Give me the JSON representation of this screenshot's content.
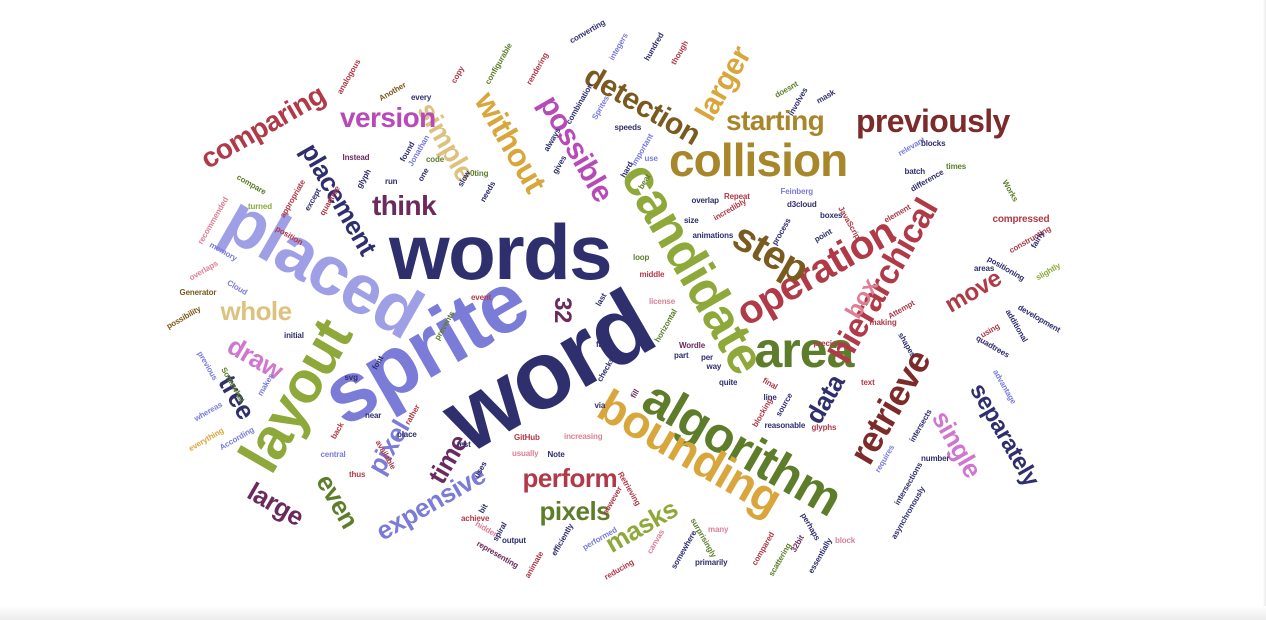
{
  "palette": {
    "navy": "#2f2f6e",
    "violet": "#7b7bd8",
    "periwinkle": "#9f9fe6",
    "olive": "#5e7d2a",
    "leaf": "#8ea83a",
    "gold": "#d9a63c",
    "ochre": "#a8862a",
    "sand": "#dcc27e",
    "maroon": "#7c2a2a",
    "crimson": "#b03a48",
    "pink": "#dd7f97",
    "magenta": "#b84ab8",
    "orchid": "#cf76cf",
    "plum": "#6b2a5e",
    "brown": "#7a5a1e"
  },
  "words": [
    {
      "text": "words",
      "color": "navy"
    },
    {
      "text": "word",
      "color": "navy"
    },
    {
      "text": "sprite",
      "color": "violet"
    },
    {
      "text": "placed",
      "color": "periwinkle"
    },
    {
      "text": "layout",
      "color": "leaf"
    },
    {
      "text": "candidate",
      "color": "leaf"
    },
    {
      "text": "algorithm",
      "color": "olive"
    },
    {
      "text": "bounding",
      "color": "gold"
    },
    {
      "text": "collision",
      "color": "ochre"
    },
    {
      "text": "area",
      "color": "olive"
    },
    {
      "text": "operation",
      "color": "crimson"
    },
    {
      "text": "retrieve",
      "color": "maroon"
    },
    {
      "text": "hierarchical",
      "color": "crimson"
    },
    {
      "text": "step",
      "color": "brown"
    },
    {
      "text": "previously",
      "color": "maroon"
    },
    {
      "text": "starting",
      "color": "ochre"
    },
    {
      "text": "detection",
      "color": "brown"
    },
    {
      "text": "larger",
      "color": "gold"
    },
    {
      "text": "possible",
      "color": "magenta"
    },
    {
      "text": "without",
      "color": "gold"
    },
    {
      "text": "simple",
      "color": "sand"
    },
    {
      "text": "version",
      "color": "magenta"
    },
    {
      "text": "comparing",
      "color": "crimson"
    },
    {
      "text": "placement",
      "color": "navy"
    },
    {
      "text": "think",
      "color": "plum"
    },
    {
      "text": "whole",
      "color": "sand"
    },
    {
      "text": "draw",
      "color": "orchid"
    },
    {
      "text": "tree",
      "color": "navy"
    },
    {
      "text": "large",
      "color": "plum"
    },
    {
      "text": "even",
      "color": "olive"
    },
    {
      "text": "pixel",
      "color": "violet"
    },
    {
      "text": "time",
      "color": "plum"
    },
    {
      "text": "expensive",
      "color": "violet"
    },
    {
      "text": "perform",
      "color": "crimson"
    },
    {
      "text": "pixels",
      "color": "olive"
    },
    {
      "text": "masks",
      "color": "leaf"
    },
    {
      "text": "data",
      "color": "navy"
    },
    {
      "text": "move",
      "color": "crimson"
    },
    {
      "text": "box",
      "color": "pink"
    },
    {
      "text": "single",
      "color": "orchid"
    },
    {
      "text": "separately",
      "color": "navy"
    },
    {
      "text": "32",
      "color": "plum"
    },
    {
      "text": "compressed",
      "color": "crimson"
    },
    {
      "text": "efficiently",
      "color": "navy"
    },
    {
      "text": "surprisingly",
      "color": "olive"
    },
    {
      "text": "representing",
      "color": "plum"
    },
    {
      "text": "primarily",
      "color": "navy"
    },
    {
      "text": "Generator",
      "color": "brown"
    },
    {
      "text": "Cloud",
      "color": "violet"
    },
    {
      "text": "Wordle",
      "color": "plum"
    },
    {
      "text": "animations",
      "color": "navy"
    },
    {
      "text": "horizontal",
      "color": "olive"
    },
    {
      "text": "Feinberg",
      "color": "violet"
    },
    {
      "text": "Jonathan",
      "color": "violet"
    },
    {
      "text": "d3cloud",
      "color": "navy"
    },
    {
      "text": "development",
      "color": "navy"
    },
    {
      "text": "positioning",
      "color": "navy"
    },
    {
      "text": "constructing",
      "color": "crimson"
    },
    {
      "text": "recommended",
      "color": "pink"
    },
    {
      "text": "Instead",
      "color": "plum"
    },
    {
      "text": "compare",
      "color": "olive"
    },
    {
      "text": "turned",
      "color": "leaf"
    },
    {
      "text": "memory",
      "color": "violet"
    },
    {
      "text": "overlaps",
      "color": "pink"
    },
    {
      "text": "possibility",
      "color": "brown"
    },
    {
      "text": "previous",
      "color": "violet"
    },
    {
      "text": "whereas",
      "color": "violet"
    },
    {
      "text": "everything",
      "color": "gold"
    },
    {
      "text": "According",
      "color": "violet"
    },
    {
      "text": "Somewhat",
      "color": "olive"
    },
    {
      "text": "central",
      "color": "violet"
    },
    {
      "text": "thus",
      "color": "crimson"
    },
    {
      "text": "usually",
      "color": "pink"
    },
    {
      "text": "Note",
      "color": "navy"
    },
    {
      "text": "uses",
      "color": "navy"
    },
    {
      "text": "output",
      "color": "navy"
    },
    {
      "text": "achieve",
      "color": "crimson"
    },
    {
      "text": "hidden",
      "color": "pink"
    },
    {
      "text": "animate",
      "color": "crimson"
    },
    {
      "text": "reducing",
      "color": "crimson"
    },
    {
      "text": "performed",
      "color": "violet"
    },
    {
      "text": "canvas",
      "color": "pink"
    },
    {
      "text": "somewhere",
      "color": "navy"
    },
    {
      "text": "many",
      "color": "pink"
    },
    {
      "text": "perhaps",
      "color": "navy"
    },
    {
      "text": "compared",
      "color": "crimson"
    },
    {
      "text": "block",
      "color": "pink"
    },
    {
      "text": "32bit",
      "color": "plum"
    },
    {
      "text": "essentially",
      "color": "navy"
    },
    {
      "text": "scattering",
      "color": "olive"
    },
    {
      "text": "intersections",
      "color": "navy"
    },
    {
      "text": "number",
      "color": "navy"
    },
    {
      "text": "asynchronously",
      "color": "navy"
    },
    {
      "text": "intersects",
      "color": "navy"
    },
    {
      "text": "requires",
      "color": "violet"
    },
    {
      "text": "final",
      "color": "crimson"
    },
    {
      "text": "text",
      "color": "crimson"
    },
    {
      "text": "line",
      "color": "navy"
    },
    {
      "text": "blocking",
      "color": "crimson"
    },
    {
      "text": "source",
      "color": "navy"
    },
    {
      "text": "glyphs",
      "color": "crimson"
    },
    {
      "text": "reasonable",
      "color": "navy"
    },
    {
      "text": "quite",
      "color": "navy"
    },
    {
      "text": "way",
      "color": "navy"
    },
    {
      "text": "per",
      "color": "navy"
    },
    {
      "text": "part",
      "color": "navy"
    },
    {
      "text": "fill",
      "color": "plum"
    },
    {
      "text": "via",
      "color": "navy"
    },
    {
      "text": "checks",
      "color": "navy"
    },
    {
      "text": "license",
      "color": "pink"
    },
    {
      "text": "prevents",
      "color": "olive"
    },
    {
      "text": "event",
      "color": "crimson"
    },
    {
      "text": "last",
      "color": "navy"
    },
    {
      "text": "middle",
      "color": "crimson"
    },
    {
      "text": "loop",
      "color": "olive"
    },
    {
      "text": "size",
      "color": "navy"
    },
    {
      "text": "overlap",
      "color": "navy"
    },
    {
      "text": "beat",
      "color": "olive"
    },
    {
      "text": "incredibly",
      "color": "crimson"
    },
    {
      "text": "Repeat",
      "color": "crimson"
    },
    {
      "text": "involves",
      "color": "navy"
    },
    {
      "text": "doesnt",
      "color": "olive"
    },
    {
      "text": "mask",
      "color": "navy"
    },
    {
      "text": "though",
      "color": "crimson"
    },
    {
      "text": "hundred",
      "color": "navy"
    },
    {
      "text": "integers",
      "color": "violet"
    },
    {
      "text": "converting",
      "color": "navy"
    },
    {
      "text": "rendering",
      "color": "crimson"
    },
    {
      "text": "configurable",
      "color": "olive"
    },
    {
      "text": "copy",
      "color": "crimson"
    },
    {
      "text": "every",
      "color": "navy"
    },
    {
      "text": "Another",
      "color": "brown"
    },
    {
      "text": "analogous",
      "color": "crimson"
    },
    {
      "text": "combination",
      "color": "navy"
    },
    {
      "text": "Sprites",
      "color": "violet"
    },
    {
      "text": "speeds",
      "color": "navy"
    },
    {
      "text": "important",
      "color": "violet"
    },
    {
      "text": "use",
      "color": "violet"
    },
    {
      "text": "hard",
      "color": "navy"
    },
    {
      "text": "relevant",
      "color": "violet"
    },
    {
      "text": "blocks",
      "color": "navy"
    },
    {
      "text": "batch",
      "color": "navy"
    },
    {
      "text": "times",
      "color": "olive"
    },
    {
      "text": "difference",
      "color": "navy"
    },
    {
      "text": "element",
      "color": "crimson"
    },
    {
      "text": "Works",
      "color": "olive"
    },
    {
      "text": "fairly",
      "color": "navy"
    },
    {
      "text": "areas",
      "color": "navy"
    },
    {
      "text": "slightly",
      "color": "leaf"
    },
    {
      "text": "additional",
      "color": "navy"
    },
    {
      "text": "quadtrees",
      "color": "navy"
    },
    {
      "text": "using",
      "color": "crimson"
    },
    {
      "text": "advantage",
      "color": "violet"
    },
    {
      "text": "shapes",
      "color": "navy"
    },
    {
      "text": "precise",
      "color": "crimson"
    },
    {
      "text": "making",
      "color": "crimson"
    },
    {
      "text": "Attempt",
      "color": "crimson"
    },
    {
      "text": "point",
      "color": "navy"
    },
    {
      "text": "boxes",
      "color": "navy"
    },
    {
      "text": "JavaScript",
      "color": "crimson"
    },
    {
      "text": "process",
      "color": "navy"
    },
    {
      "text": "fast",
      "color": "navy"
    },
    {
      "text": "initial",
      "color": "navy"
    },
    {
      "text": "svg",
      "color": "navy"
    },
    {
      "text": "font",
      "color": "navy"
    },
    {
      "text": "near",
      "color": "navy"
    },
    {
      "text": "makes",
      "color": "violet"
    },
    {
      "text": "back",
      "color": "crimson"
    },
    {
      "text": "rather",
      "color": "crimson"
    },
    {
      "text": "place",
      "color": "navy"
    },
    {
      "text": "available",
      "color": "crimson"
    },
    {
      "text": "test",
      "color": "navy"
    },
    {
      "text": "GitHub",
      "color": "crimson"
    },
    {
      "text": "increasing",
      "color": "pink"
    },
    {
      "text": "bit",
      "color": "navy"
    },
    {
      "text": "however",
      "color": "crimson"
    },
    {
      "text": "spiral",
      "color": "navy"
    },
    {
      "text": "Retrieving",
      "color": "crimson"
    },
    {
      "text": "position",
      "color": "crimson"
    },
    {
      "text": "appropriate",
      "color": "crimson"
    },
    {
      "text": "quadtree",
      "color": "crimson"
    },
    {
      "text": "except",
      "color": "navy"
    },
    {
      "text": "glyph",
      "color": "navy"
    },
    {
      "text": "run",
      "color": "navy"
    },
    {
      "text": "found",
      "color": "navy"
    },
    {
      "text": "code",
      "color": "olive"
    },
    {
      "text": "one",
      "color": "navy"
    },
    {
      "text": "slow",
      "color": "navy"
    },
    {
      "text": "needs",
      "color": "navy"
    },
    {
      "text": "always",
      "color": "navy"
    },
    {
      "text": "gives",
      "color": "navy"
    },
    {
      "text": "0ting",
      "color": "olive"
    }
  ]
}
